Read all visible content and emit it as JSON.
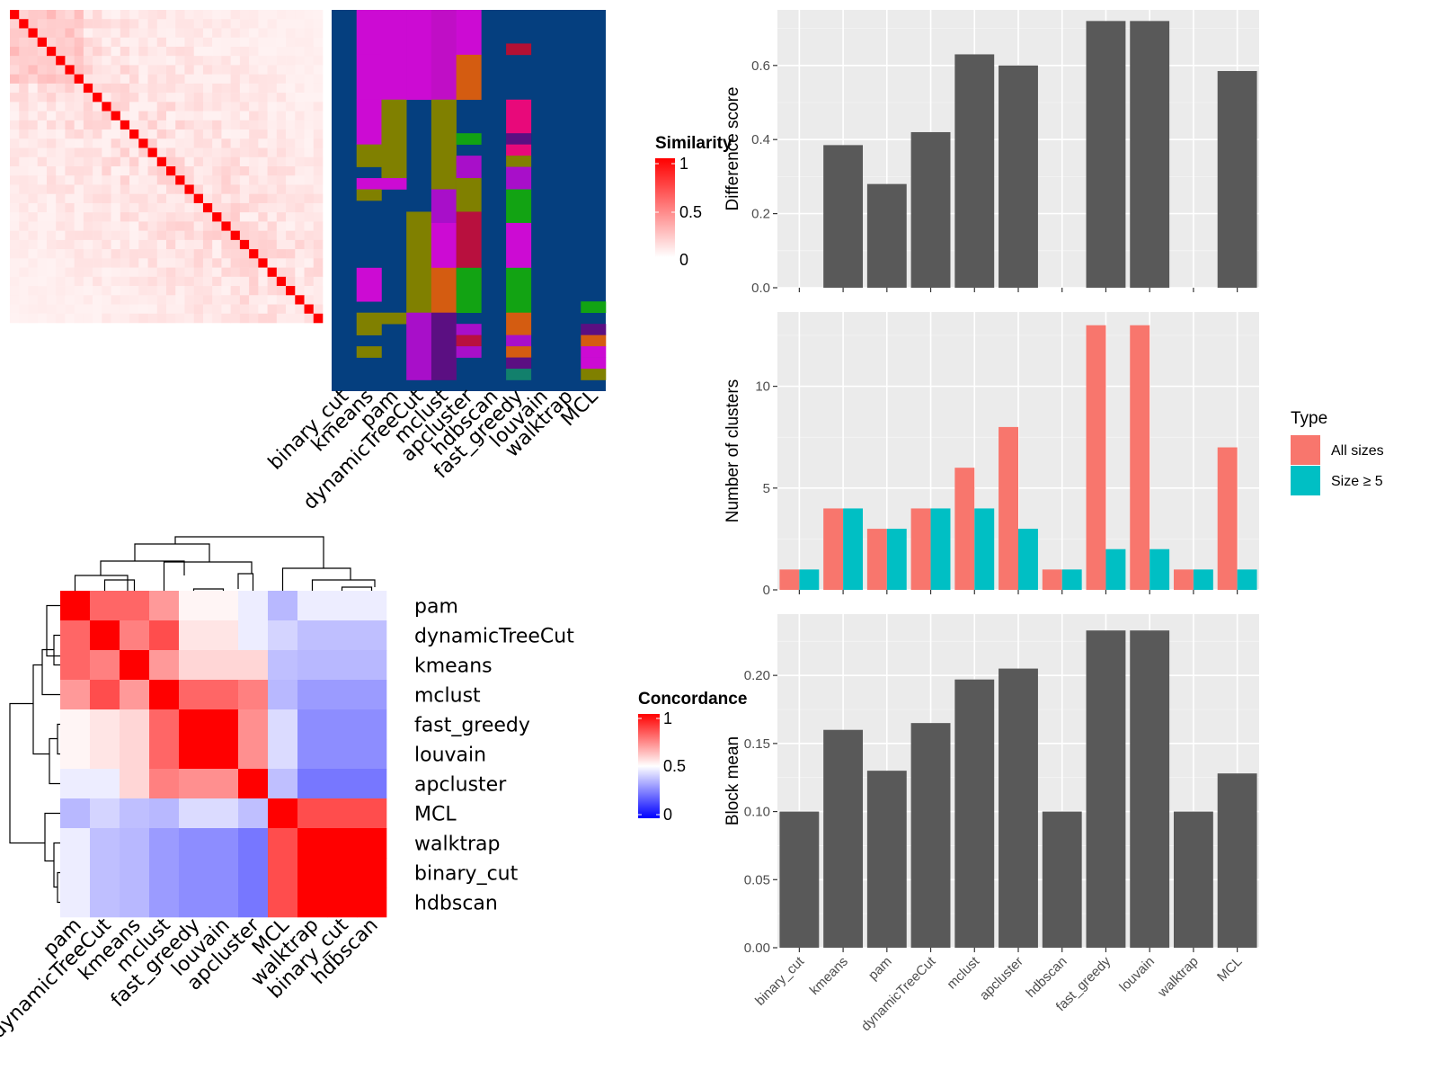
{
  "methods_order": [
    "binary_cut",
    "kmeans",
    "pam",
    "dynamicTreeCut",
    "mclust",
    "apcluster",
    "hdbscan",
    "fast_greedy",
    "louvain",
    "walktrap",
    "MCL"
  ],
  "chart_data": [
    {
      "id": "similarity_heatmap",
      "type": "heatmap",
      "legend_title": "Similarity",
      "legend_ticks": [
        "1",
        "0.5",
        "0"
      ],
      "n": 34,
      "colors": {
        "low": "#ffffff",
        "high": "#ff0000"
      }
    },
    {
      "id": "cluster_assignment_panel",
      "type": "heatmap",
      "columns": [
        "binary_cut",
        "kmeans",
        "pam",
        "dynamicTreeCut",
        "mclust",
        "apcluster",
        "hdbscan",
        "fast_greedy",
        "louvain",
        "walktrap",
        "MCL"
      ],
      "n_rows": 34,
      "background": "#053f7f",
      "palette": {
        "A": "#cc0bd3",
        "B": "#c00ec6",
        "C": "#808000",
        "D": "#a80fc9",
        "E": "#d45c11",
        "F": "#e8097a",
        "G": "#12a313",
        "H": "#b8103e",
        "I": "#5b0f82",
        "J": "#12806c",
        "K": "#b31034",
        "L": "#c81ad8"
      },
      "columns_data": [
        [],
        [
          [
            "A",
            0,
            4
          ],
          [
            "A",
            4,
            8
          ],
          [
            "A",
            8,
            12
          ],
          [
            "C",
            12,
            14
          ],
          [
            "A",
            15,
            16
          ],
          [
            "C",
            16,
            17
          ],
          [
            "A",
            23,
            26
          ],
          [
            "C",
            27,
            29
          ],
          [
            "C",
            30,
            31
          ]
        ],
        [
          [
            "A",
            0,
            8
          ],
          [
            "C",
            8,
            15
          ],
          [
            "A",
            15,
            16
          ],
          [
            "C",
            27,
            28
          ]
        ],
        [
          [
            "A",
            0,
            8
          ],
          [
            "C",
            18,
            27
          ],
          [
            "D",
            27,
            33
          ]
        ],
        [
          [
            "B",
            0,
            8
          ],
          [
            "C",
            8,
            16
          ],
          [
            "D",
            16,
            19
          ],
          [
            "A",
            19,
            23
          ],
          [
            "E",
            23,
            27
          ],
          [
            "I",
            27,
            33
          ]
        ],
        [
          [
            "A",
            0,
            4
          ],
          [
            "E",
            4,
            8
          ],
          [
            "G",
            11,
            12
          ],
          [
            "D",
            13,
            15
          ],
          [
            "C",
            15,
            18
          ],
          [
            "H",
            18,
            25
          ],
          [
            "G",
            23,
            27
          ],
          [
            "D",
            28,
            29
          ],
          [
            "H",
            29,
            30
          ],
          [
            "D",
            30,
            31
          ]
        ],
        [],
        [
          [
            "K",
            3,
            4
          ],
          [
            "F",
            8,
            11
          ],
          [
            "I",
            11,
            12
          ],
          [
            "F",
            12,
            13
          ],
          [
            "C",
            13,
            14
          ],
          [
            "D",
            14,
            16
          ],
          [
            "G",
            16,
            19
          ],
          [
            "A",
            19,
            23
          ],
          [
            "G",
            23,
            27
          ],
          [
            "E",
            27,
            29
          ],
          [
            "D",
            29,
            30
          ],
          [
            "E",
            30,
            31
          ],
          [
            "I",
            31,
            32
          ],
          [
            "J",
            32,
            33
          ]
        ],
        [],
        [],
        [
          [
            "G",
            26,
            27
          ],
          [
            "I",
            28,
            29
          ],
          [
            "E",
            29,
            30
          ],
          [
            "A",
            30,
            31
          ],
          [
            "A",
            31,
            32
          ],
          [
            "C",
            32,
            33
          ]
        ]
      ]
    },
    {
      "id": "concordance_heatmap",
      "type": "heatmap",
      "legend_title": "Concordance",
      "legend_ticks": [
        "1",
        "0.5",
        "0"
      ],
      "labels": [
        "pam",
        "dynamicTreeCut",
        "kmeans",
        "mclust",
        "fast_greedy",
        "louvain",
        "apcluster",
        "MCL",
        "walktrap",
        "binary_cut",
        "hdbscan"
      ],
      "values": [
        [
          1.0,
          0.8,
          0.8,
          0.7,
          0.52,
          0.52,
          0.45,
          0.3,
          0.45,
          0.45,
          0.45
        ],
        [
          0.8,
          1.0,
          0.75,
          0.85,
          0.55,
          0.55,
          0.45,
          0.38,
          0.32,
          0.32,
          0.32
        ],
        [
          0.8,
          0.75,
          1.0,
          0.7,
          0.58,
          0.58,
          0.58,
          0.32,
          0.3,
          0.3,
          0.3
        ],
        [
          0.7,
          0.85,
          0.7,
          1.0,
          0.8,
          0.8,
          0.75,
          0.3,
          0.22,
          0.22,
          0.22
        ],
        [
          0.52,
          0.55,
          0.58,
          0.8,
          1.0,
          1.0,
          0.72,
          0.4,
          0.18,
          0.18,
          0.18
        ],
        [
          0.52,
          0.55,
          0.58,
          0.8,
          1.0,
          1.0,
          0.72,
          0.4,
          0.18,
          0.18,
          0.18
        ],
        [
          0.45,
          0.45,
          0.58,
          0.75,
          0.72,
          0.72,
          1.0,
          0.32,
          0.12,
          0.12,
          0.12
        ],
        [
          0.3,
          0.38,
          0.32,
          0.3,
          0.4,
          0.4,
          0.32,
          1.0,
          0.85,
          0.85,
          0.85
        ],
        [
          0.45,
          0.32,
          0.3,
          0.22,
          0.18,
          0.18,
          0.12,
          0.85,
          1.0,
          1.0,
          1.0
        ],
        [
          0.45,
          0.32,
          0.3,
          0.22,
          0.18,
          0.18,
          0.12,
          0.85,
          1.0,
          1.0,
          1.0
        ],
        [
          0.45,
          0.32,
          0.3,
          0.22,
          0.18,
          0.18,
          0.12,
          0.85,
          1.0,
          1.0,
          1.0
        ]
      ],
      "colors": {
        "low": "#0000ff",
        "mid": "#ffffff",
        "high": "#ff0000"
      }
    },
    {
      "id": "difference_score",
      "type": "bar",
      "categories": [
        "binary_cut",
        "kmeans",
        "pam",
        "dynamicTreeCut",
        "mclust",
        "apcluster",
        "hdbscan",
        "fast_greedy",
        "louvain",
        "walktrap",
        "MCL"
      ],
      "values": [
        0,
        0.385,
        0.28,
        0.42,
        0.63,
        0.6,
        0,
        0.72,
        0.72,
        0,
        0.585
      ],
      "ylabel": "Difference score",
      "ylim": [
        0,
        0.75
      ],
      "yticks": [
        0.0,
        0.2,
        0.4,
        0.6
      ],
      "ytick_labels": [
        "0.0",
        "0.2",
        "0.4",
        "0.6"
      ],
      "bar_color": "#595959",
      "grid": true
    },
    {
      "id": "number_of_clusters",
      "type": "bar",
      "categories": [
        "binary_cut",
        "kmeans",
        "pam",
        "dynamicTreeCut",
        "mclust",
        "apcluster",
        "hdbscan",
        "fast_greedy",
        "louvain",
        "walktrap",
        "MCL"
      ],
      "series": [
        {
          "name": "All sizes",
          "color": "#f8766d",
          "values": [
            1,
            4,
            3,
            4,
            6,
            8,
            1,
            13,
            13,
            1,
            7
          ]
        },
        {
          "name": "Size ≥ 5",
          "color": "#00bfc4",
          "values": [
            1,
            4,
            3,
            4,
            4,
            3,
            1,
            2,
            2,
            1,
            1
          ]
        }
      ],
      "ylabel": "Number of clusters",
      "ylim": [
        0,
        13.65
      ],
      "yticks": [
        0,
        5,
        10
      ],
      "ytick_labels": [
        "0",
        "5",
        "10"
      ],
      "legend_title": "Type",
      "legend_position": "right",
      "grid": true
    },
    {
      "id": "block_mean",
      "type": "bar",
      "categories": [
        "binary_cut",
        "kmeans",
        "pam",
        "dynamicTreeCut",
        "mclust",
        "apcluster",
        "hdbscan",
        "fast_greedy",
        "louvain",
        "walktrap",
        "MCL"
      ],
      "values": [
        0.1,
        0.16,
        0.13,
        0.165,
        0.197,
        0.205,
        0.1,
        0.233,
        0.233,
        0.1,
        0.128
      ],
      "ylabel": "Block mean",
      "ylim": [
        0,
        0.245
      ],
      "yticks": [
        0.0,
        0.05,
        0.1,
        0.15,
        0.2
      ],
      "ytick_labels": [
        "0.00",
        "0.05",
        "0.10",
        "0.15",
        "0.20"
      ],
      "bar_color": "#595959",
      "grid": true
    }
  ]
}
